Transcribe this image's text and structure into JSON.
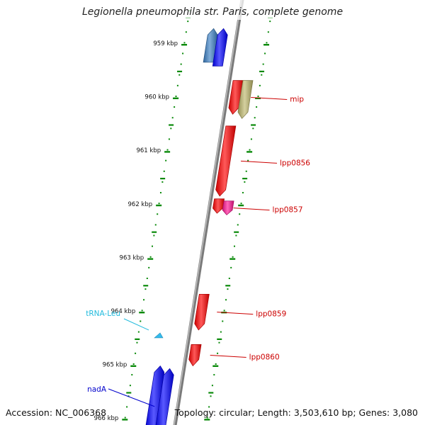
{
  "title": "Legionella pneumophila str. Paris, complete genome",
  "accession_label": "Accession: NC_006368",
  "stats_label": "Topology: circular; Length: 3,503,610 bp; Genes: 3,080",
  "scale": {
    "unit": "kbp",
    "ticks": [
      {
        "kbp": 959,
        "label": "959 kbp"
      },
      {
        "kbp": 960,
        "label": "960 kbp"
      },
      {
        "kbp": 961,
        "label": "961 kbp"
      },
      {
        "kbp": 962,
        "label": "962 kbp"
      },
      {
        "kbp": 963,
        "label": "963 kbp"
      },
      {
        "kbp": 964,
        "label": "964 kbp"
      },
      {
        "kbp": 965,
        "label": "965 kbp"
      },
      {
        "kbp": 966,
        "label": "966 kbp"
      }
    ]
  },
  "features": [
    {
      "name": "",
      "strand": "+",
      "track": "outer-left",
      "start_kbp": 958.7,
      "end_kbp": 959.33,
      "color": "#3b7fc4"
    },
    {
      "name": "",
      "strand": "+",
      "track": "inner-left",
      "start_kbp": 958.7,
      "end_kbp": 959.4,
      "color": "#0000ff"
    },
    {
      "name": "mip",
      "strand": "-",
      "track": "inner-right",
      "start_kbp": 959.67,
      "end_kbp": 960.3,
      "color": "#ff0000",
      "label_color": "#cc0000"
    },
    {
      "name": "",
      "strand": "-",
      "track": "outer-right",
      "start_kbp": 959.67,
      "end_kbp": 960.38,
      "color": "#bdb76b"
    },
    {
      "name": "lpp0856",
      "strand": "-",
      "track": "inner-right",
      "start_kbp": 960.52,
      "end_kbp": 961.83,
      "color": "#ff0000",
      "label_color": "#cc0000"
    },
    {
      "name": "",
      "strand": "-",
      "track": "inner-right",
      "start_kbp": 961.88,
      "end_kbp": 962.15,
      "color": "#ff0000"
    },
    {
      "name": "lpp0857",
      "strand": "-",
      "track": "outer-right",
      "start_kbp": 961.92,
      "end_kbp": 962.18,
      "color": "#ff1493",
      "label_color": "#cc0000"
    },
    {
      "name": "lpp0859",
      "strand": "-",
      "track": "inner-right",
      "start_kbp": 963.66,
      "end_kbp": 964.33,
      "color": "#ff0000",
      "label_color": "#cc0000"
    },
    {
      "name": "tRNA-Leu",
      "strand": "+",
      "track": "rna",
      "start_kbp": 964.33,
      "end_kbp": 964.42,
      "color": "#33bbee",
      "label_color": "#22bbdd"
    },
    {
      "name": "lpp0860",
      "strand": "-",
      "track": "inner-right",
      "start_kbp": 964.6,
      "end_kbp": 965.0,
      "color": "#ff0000",
      "label_color": "#cc0000"
    },
    {
      "name": "",
      "strand": "+",
      "track": "outer-left",
      "start_kbp": 965.0,
      "end_kbp": 966.2,
      "color": "#0000ff"
    },
    {
      "name": "nadA",
      "strand": "+",
      "track": "inner-left",
      "start_kbp": 965.05,
      "end_kbp": 966.2,
      "color": "#0000ff",
      "label_color": "#0000cc"
    }
  ]
}
